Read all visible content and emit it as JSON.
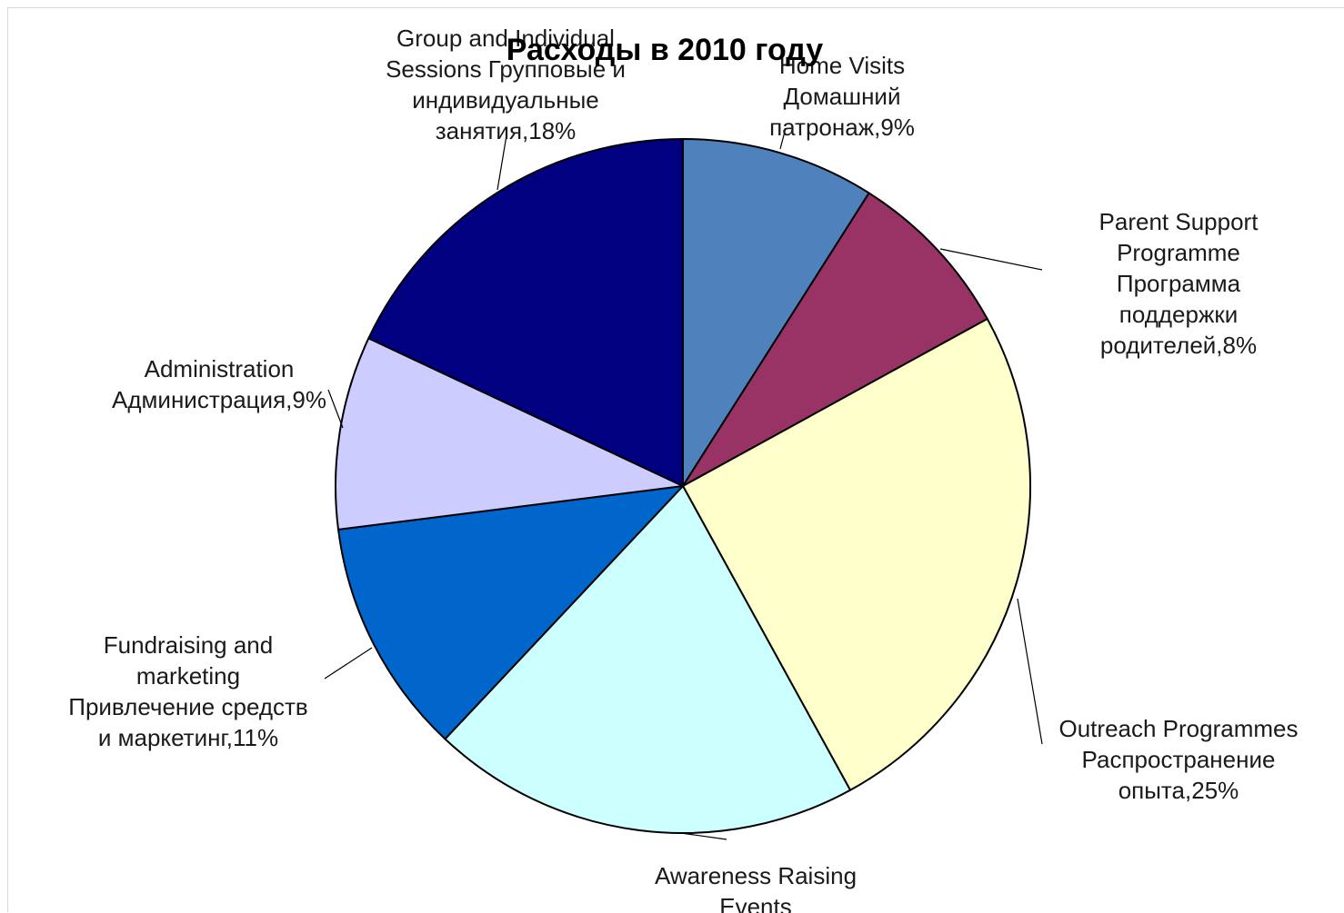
{
  "chart_data": {
    "type": "pie",
    "title": "Расходы в 2010 году",
    "start_angle_deg": 0,
    "direction": "clockwise",
    "slices": [
      {
        "label": "Home Visits Домашний патронаж",
        "value": 9,
        "color": "#4f81bd",
        "label_lines": [
          "Home Visits",
          "Домашний",
          "патронаж,9%"
        ]
      },
      {
        "label": "Parent Support Programme Программа поддержки родителей",
        "value": 8,
        "color": "#993366",
        "label_lines": [
          "Parent Support",
          "Programme",
          "Программа",
          "поддержки",
          "родителей,8%"
        ]
      },
      {
        "label": "Outreach Programmes Распространение опыта",
        "value": 25,
        "color": "#ffffcc",
        "label_lines": [
          "Outreach Programmes",
          "Распространение",
          "опыта,25%"
        ]
      },
      {
        "label": "Awareness Raising Events",
        "value": 20,
        "color": "#ccffff",
        "label_lines": [
          "Awareness Raising",
          "Events"
        ]
      },
      {
        "label": "Fundraising and marketing Привлечение средств и маркетинг",
        "value": 11,
        "color": "#0066cc",
        "label_lines": [
          "Fundraising and",
          "marketing",
          "Привлечение средств",
          "и маркетинг,11%"
        ]
      },
      {
        "label": "Administration Администрация",
        "value": 9,
        "color": "#ccccff",
        "label_lines": [
          "Administration",
          "Администрация,9%"
        ]
      },
      {
        "label": "Group and Individual Sessions Групповые и индивидуальные занятия",
        "value": 18,
        "color": "#000080",
        "label_lines": [
          "Group and Individual",
          "Sessions Групповые и",
          "индивидуальные",
          "занятия,18%"
        ]
      }
    ]
  }
}
